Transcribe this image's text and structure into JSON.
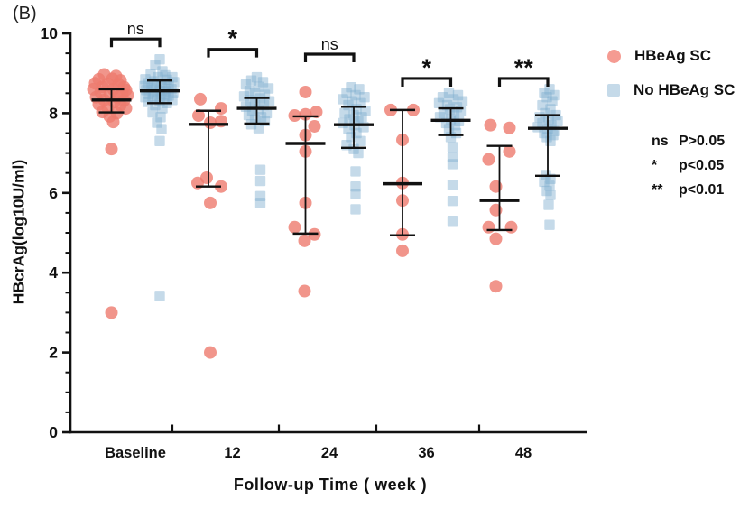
{
  "panel_label": "(B)",
  "legend": [
    {
      "label": "HBeAg SC",
      "shape": "circle",
      "swatch": "#F59B92"
    },
    {
      "label": "No HBeAg SC",
      "shape": "square",
      "swatch": "#C5DAE9"
    }
  ],
  "sig_key": [
    {
      "symbol": "ns",
      "text": "P>0.05"
    },
    {
      "symbol": "*",
      "text": "p<0.05"
    },
    {
      "symbol": "**",
      "text": "p<0.01"
    }
  ],
  "chart_data": {
    "type": "scatter",
    "title": "",
    "xlabel": "Follow-up Time ( week )",
    "ylabel": "HBcrAg(log10U/ml)",
    "ylim": [
      0,
      10
    ],
    "y_ticks": [
      0,
      2,
      4,
      6,
      8,
      10
    ],
    "y_minor_step": 0.5,
    "grid": false,
    "legend_position": "right",
    "categories": [
      "Baseline",
      "12",
      "24",
      "36",
      "48"
    ],
    "series": [
      {
        "name": "HBeAg SC",
        "marker": "circle",
        "color": "rgba(238,122,110,0.8)",
        "x_offset": -26.5,
        "points": [
          [
            [
              -8,
              8.97
            ],
            [
              5,
              8.93
            ],
            [
              -14,
              8.85
            ],
            [
              1,
              8.86
            ],
            [
              10,
              8.82
            ],
            [
              -18,
              8.75
            ],
            [
              -4,
              8.74
            ],
            [
              8,
              8.72
            ],
            [
              -10,
              8.66
            ],
            [
              14,
              8.65
            ],
            [
              -20,
              8.6
            ],
            [
              2,
              8.6
            ],
            [
              16,
              8.58
            ],
            [
              -12,
              8.52
            ],
            [
              12,
              8.5
            ],
            [
              -2,
              8.47
            ],
            [
              18,
              8.45
            ],
            [
              -17,
              8.4
            ],
            [
              6,
              8.4
            ],
            [
              -8,
              8.33
            ],
            [
              14,
              8.32
            ],
            [
              3,
              8.28
            ],
            [
              -14,
              8.22
            ],
            [
              10,
              8.2
            ],
            [
              -4,
              8.13
            ],
            [
              16,
              8.12
            ],
            [
              -10,
              8.03
            ],
            [
              6,
              8.0
            ],
            [
              -2,
              7.92
            ],
            [
              2,
              7.78
            ],
            [
              0,
              7.1
            ],
            [
              0,
              3.0
            ]
          ],
          [
            [
              -9,
              8.35
            ],
            [
              14,
              8.12
            ],
            [
              -11,
              7.94
            ],
            [
              2,
              7.76
            ],
            [
              14,
              7.8
            ],
            [
              -2,
              6.38
            ],
            [
              -12,
              6.25
            ],
            [
              14,
              6.16
            ],
            [
              2,
              5.75
            ],
            [
              2,
              2.0
            ]
          ],
          [
            [
              0,
              8.53
            ],
            [
              -12,
              7.94
            ],
            [
              0,
              7.97
            ],
            [
              12,
              8.03
            ],
            [
              10,
              7.67
            ],
            [
              0,
              7.45
            ],
            [
              0,
              7.04
            ],
            [
              0,
              5.75
            ],
            [
              -12,
              5.14
            ],
            [
              10,
              4.96
            ],
            [
              -1,
              4.8
            ],
            [
              -1,
              3.54
            ]
          ],
          [
            [
              -13,
              8.08
            ],
            [
              12,
              8.08
            ],
            [
              0,
              7.33
            ],
            [
              0,
              6.25
            ],
            [
              0,
              5.81
            ],
            [
              0,
              4.96
            ],
            [
              0,
              4.55
            ]
          ],
          [
            [
              -10,
              7.7
            ],
            [
              11,
              7.63
            ],
            [
              11,
              7.04
            ],
            [
              -12,
              6.84
            ],
            [
              -4,
              6.16
            ],
            [
              -4,
              5.57
            ],
            [
              -12,
              5.14
            ],
            [
              13,
              5.14
            ],
            [
              -4,
              4.85
            ],
            [
              -4,
              3.66
            ]
          ]
        ],
        "stats": [
          {
            "median": 8.33,
            "q1": 8.02,
            "q3": 8.6
          },
          {
            "median": 7.72,
            "q1": 6.16,
            "q3": 8.06
          },
          {
            "median": 7.24,
            "q1": 4.98,
            "q3": 7.92
          },
          {
            "median": 6.23,
            "q1": 4.94,
            "q3": 8.08
          },
          {
            "median": 5.81,
            "q1": 5.07,
            "q3": 7.18
          }
        ]
      },
      {
        "name": "No HBeAg SC",
        "marker": "square",
        "color": "rgba(126,172,207,0.45)",
        "x_offset": 27,
        "points": [
          [
            [
              0,
              9.35
            ],
            [
              -5,
              9.2
            ],
            [
              3,
              9.05
            ],
            [
              -10,
              8.97
            ],
            [
              6,
              8.95
            ],
            [
              -2,
              8.9
            ],
            [
              14,
              8.9
            ],
            [
              -16,
              8.85
            ],
            [
              8,
              8.84
            ],
            [
              -6,
              8.8
            ],
            [
              16,
              8.78
            ],
            [
              -13,
              8.75
            ],
            [
              2,
              8.74
            ],
            [
              -4,
              8.7
            ],
            [
              10,
              8.7
            ],
            [
              -17,
              8.68
            ],
            [
              5,
              8.65
            ],
            [
              -9,
              8.63
            ],
            [
              13,
              8.6
            ],
            [
              -15,
              8.58
            ],
            [
              0,
              8.57
            ],
            [
              7,
              8.55
            ],
            [
              -7,
              8.53
            ],
            [
              15,
              8.5
            ],
            [
              -12,
              8.48
            ],
            [
              2,
              8.47
            ],
            [
              10,
              8.44
            ],
            [
              -3,
              8.42
            ],
            [
              -16,
              8.4
            ],
            [
              5,
              8.38
            ],
            [
              -8,
              8.35
            ],
            [
              14,
              8.33
            ],
            [
              0,
              8.3
            ],
            [
              -13,
              8.28
            ],
            [
              8,
              8.25
            ],
            [
              -5,
              8.2
            ],
            [
              3,
              8.12
            ],
            [
              -8,
              8.02
            ],
            [
              1,
              7.9
            ],
            [
              -3,
              7.76
            ],
            [
              2,
              7.6
            ],
            [
              0,
              7.3
            ],
            [
              0,
              3.42
            ]
          ],
          [
            [
              0,
              8.9
            ],
            [
              -6,
              8.82
            ],
            [
              7,
              8.78
            ],
            [
              -12,
              8.72
            ],
            [
              2,
              8.66
            ],
            [
              13,
              8.62
            ],
            [
              -8,
              8.56
            ],
            [
              -2,
              8.5
            ],
            [
              9,
              8.46
            ],
            [
              -14,
              8.42
            ],
            [
              4,
              8.37
            ],
            [
              -7,
              8.32
            ],
            [
              14,
              8.3
            ],
            [
              -2,
              8.26
            ],
            [
              8,
              8.2
            ],
            [
              -12,
              8.16
            ],
            [
              2,
              8.1
            ],
            [
              -5,
              8.05
            ],
            [
              11,
              8.0
            ],
            [
              -9,
              7.95
            ],
            [
              5,
              7.9
            ],
            [
              -2,
              7.84
            ],
            [
              9,
              7.8
            ],
            [
              -6,
              7.72
            ],
            [
              2,
              7.62
            ],
            [
              4,
              6.58
            ],
            [
              4,
              6.3
            ],
            [
              4,
              5.92
            ],
            [
              4,
              5.75
            ]
          ],
          [
            [
              -3,
              8.65
            ],
            [
              6,
              8.6
            ],
            [
              -8,
              8.5
            ],
            [
              2,
              8.45
            ],
            [
              12,
              8.4
            ],
            [
              -12,
              8.35
            ],
            [
              -2,
              8.3
            ],
            [
              8,
              8.25
            ],
            [
              -6,
              8.2
            ],
            [
              3,
              8.1
            ],
            [
              13,
              8.05
            ],
            [
              -10,
              8.0
            ],
            [
              0,
              7.95
            ],
            [
              9,
              7.9
            ],
            [
              -5,
              7.85
            ],
            [
              5,
              7.8
            ],
            [
              -12,
              7.75
            ],
            [
              1,
              7.7
            ],
            [
              11,
              7.65
            ],
            [
              -6,
              7.6
            ],
            [
              3,
              7.5
            ],
            [
              -3,
              7.4
            ],
            [
              8,
              7.3
            ],
            [
              -8,
              7.2
            ],
            [
              0,
              7.1
            ],
            [
              5,
              7.0
            ],
            [
              2,
              6.54
            ],
            [
              2,
              6.16
            ],
            [
              2,
              5.98
            ],
            [
              2,
              5.59
            ]
          ],
          [
            [
              -2,
              8.5
            ],
            [
              8,
              8.45
            ],
            [
              -9,
              8.4
            ],
            [
              3,
              8.35
            ],
            [
              13,
              8.3
            ],
            [
              -13,
              8.25
            ],
            [
              -4,
              8.2
            ],
            [
              7,
              8.15
            ],
            [
              -1,
              8.1
            ],
            [
              11,
              8.05
            ],
            [
              -8,
              8.0
            ],
            [
              4,
              7.95
            ],
            [
              -12,
              7.9
            ],
            [
              0,
              7.85
            ],
            [
              9,
              7.8
            ],
            [
              -5,
              7.75
            ],
            [
              5,
              7.7
            ],
            [
              -2,
              7.6
            ],
            [
              6,
              7.5
            ],
            [
              0,
              7.4
            ],
            [
              2,
              7.15
            ],
            [
              2,
              6.9
            ],
            [
              2,
              6.72
            ],
            [
              2,
              6.2
            ],
            [
              2,
              5.8
            ],
            [
              2,
              5.3
            ]
          ],
          [
            [
              2,
              8.6
            ],
            [
              -4,
              8.5
            ],
            [
              8,
              8.45
            ],
            [
              -1,
              8.4
            ],
            [
              5,
              8.3
            ],
            [
              -6,
              8.2
            ],
            [
              3,
              8.1
            ],
            [
              -3,
              8.0
            ],
            [
              9,
              7.95
            ],
            [
              -9,
              7.9
            ],
            [
              1,
              7.85
            ],
            [
              11,
              7.8
            ],
            [
              -6,
              7.75
            ],
            [
              4,
              7.7
            ],
            [
              -11,
              7.65
            ],
            [
              0,
              7.6
            ],
            [
              8,
              7.55
            ],
            [
              -4,
              7.5
            ],
            [
              6,
              7.45
            ],
            [
              -1,
              7.4
            ],
            [
              3,
              7.3
            ],
            [
              -2,
              6.45
            ],
            [
              3,
              6.35
            ],
            [
              -4,
              6.28
            ],
            [
              2,
              6.18
            ],
            [
              -1,
              6.05
            ],
            [
              3,
              5.95
            ],
            [
              1,
              5.7
            ],
            [
              2,
              5.2
            ]
          ]
        ],
        "stats": [
          {
            "median": 8.56,
            "q1": 8.25,
            "q3": 8.82
          },
          {
            "median": 8.12,
            "q1": 7.74,
            "q3": 8.38
          },
          {
            "median": 7.71,
            "q1": 7.13,
            "q3": 8.16
          },
          {
            "median": 7.82,
            "q1": 7.45,
            "q3": 8.12
          },
          {
            "median": 7.62,
            "q1": 6.43,
            "q3": 7.95
          }
        ]
      }
    ],
    "comparisons": [
      {
        "category": "Baseline",
        "label": "ns",
        "y": 9.86
      },
      {
        "category": "12",
        "label": "*",
        "y": 9.6
      },
      {
        "category": "24",
        "label": "ns",
        "y": 9.48
      },
      {
        "category": "36",
        "label": "*",
        "y": 8.87
      },
      {
        "category": "48",
        "label": "**",
        "y": 8.87
      }
    ]
  }
}
